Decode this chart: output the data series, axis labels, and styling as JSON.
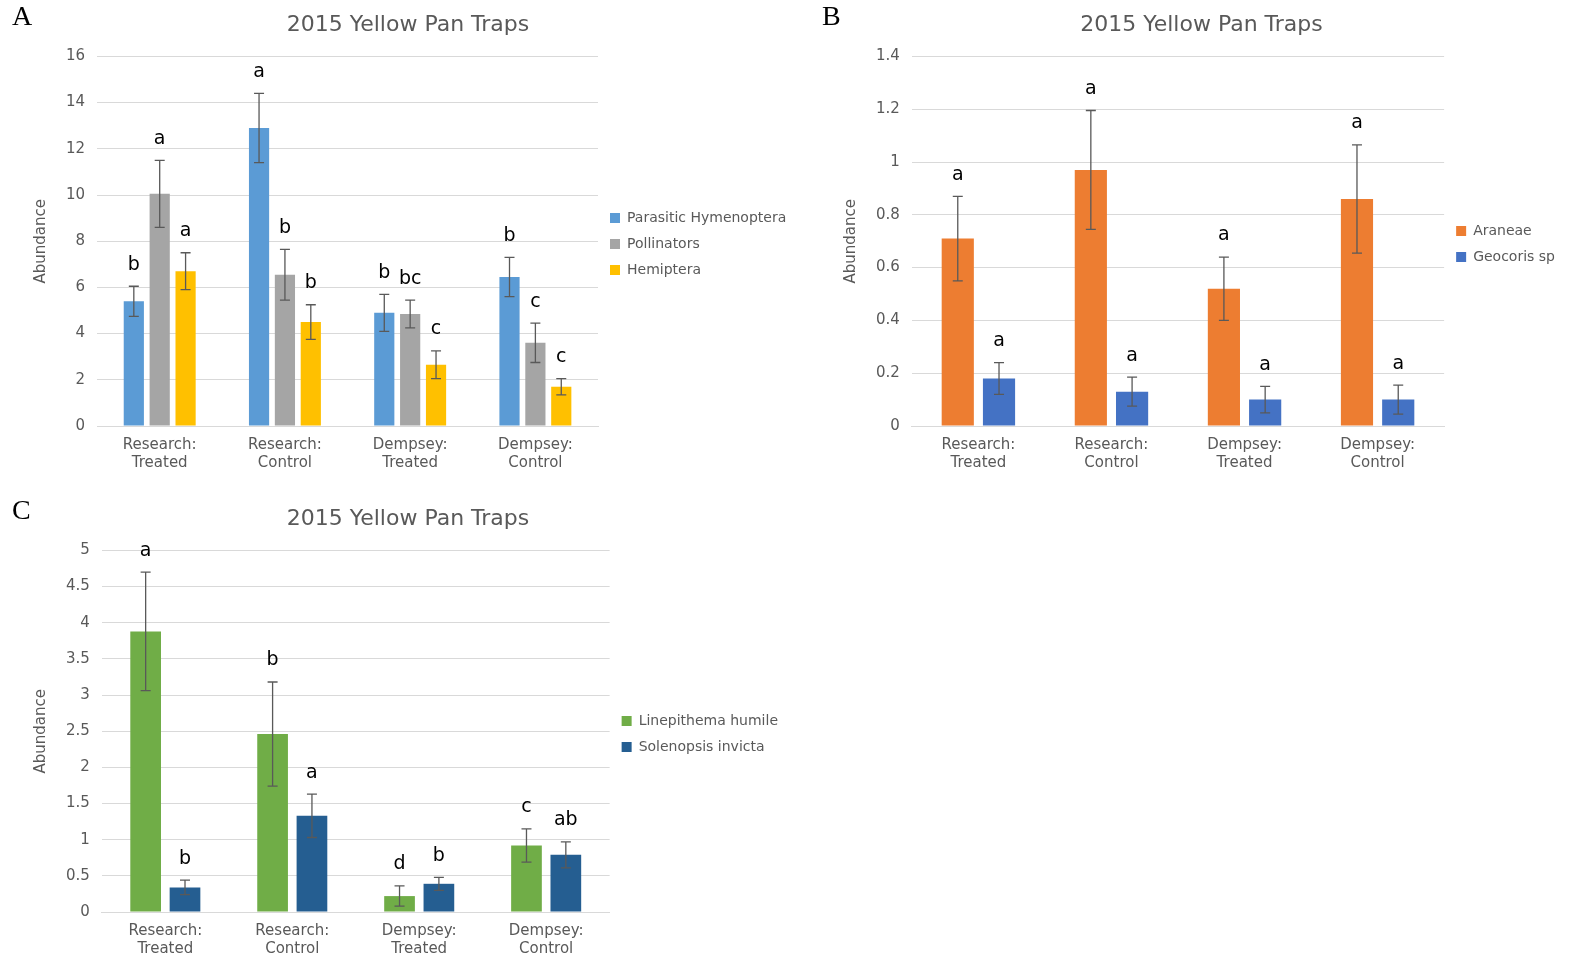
{
  "chart_data": [
    {
      "type": "bar",
      "title": "2015 Yellow Pan Traps",
      "ylabel": "Abundance",
      "categories": [
        "Research: Treated",
        "Research: Control",
        "Dempsey: Treated",
        "Dempsey: Control"
      ],
      "ylim": [
        0,
        16
      ],
      "yticks": [
        0,
        2,
        4,
        6,
        8,
        10,
        12,
        14,
        16
      ],
      "grid": "y",
      "legend": "right",
      "annotations": [
        "A",
        "b",
        "a",
        "a",
        "a",
        "b",
        "b",
        "b",
        "bc",
        "c",
        "b",
        "c",
        "c"
      ],
      "series": [
        {
          "name": "Parasitic Hymenoptera",
          "color": "#5b9bd5",
          "values": [
            5.4,
            12.9,
            4.9,
            6.45
          ],
          "errors": [
            0.65,
            1.5,
            0.8,
            0.85
          ]
        },
        {
          "name": "Pollinators",
          "color": "#a5a5a5",
          "values": [
            10.05,
            6.55,
            4.85,
            3.6
          ],
          "errors": [
            1.45,
            1.1,
            0.6,
            0.85
          ]
        },
        {
          "name": "Hemiptera",
          "color": "#ffc000",
          "values": [
            6.7,
            4.5,
            2.65,
            1.7
          ],
          "errors": [
            0.8,
            0.75,
            0.6,
            0.35
          ]
        }
      ]
    },
    {
      "type": "bar",
      "title": "2015 Yellow Pan Traps",
      "ylabel": "Abundance",
      "categories": [
        "Research: Treated",
        "Research: Control",
        "Dempsey: Treated",
        "Dempsey: Control"
      ],
      "ylim": [
        0,
        1.4
      ],
      "yticks": [
        0,
        0.2,
        0.4,
        0.6,
        0.8,
        1,
        1.2,
        1.4
      ],
      "grid": "y",
      "legend": "right",
      "annotations": [
        "B",
        "a",
        "a",
        "a",
        "a",
        "a",
        "a",
        "a",
        "a"
      ],
      "series": [
        {
          "name": "Araneae",
          "color": "#ed7d31",
          "values": [
            0.71,
            0.97,
            0.52,
            0.86
          ],
          "errors": [
            0.16,
            0.225,
            0.12,
            0.205
          ]
        },
        {
          "name": "Geocoris sp",
          "color": "#4472c4",
          "values": [
            0.18,
            0.13,
            0.1,
            0.1
          ],
          "errors": [
            0.06,
            0.055,
            0.05,
            0.055
          ]
        }
      ]
    },
    {
      "type": "bar",
      "title": "2015 Yellow Pan Traps",
      "ylabel": "Abundance",
      "categories": [
        "Research: Treated",
        "Research: Control",
        "Dempsey: Treated",
        "Dempsey: Control"
      ],
      "ylim": [
        0,
        5
      ],
      "yticks": [
        0,
        0.5,
        1,
        1.5,
        2,
        2.5,
        3,
        3.5,
        4,
        4.5,
        5
      ],
      "grid": "y",
      "legend": "right",
      "annotations": [
        "C",
        "a",
        "b",
        "b",
        "a",
        "d",
        "b",
        "c",
        "ab"
      ],
      "series": [
        {
          "name": "Linepithema humile",
          "color": "#70ad47",
          "values": [
            3.88,
            2.46,
            0.22,
            0.92
          ],
          "errors": [
            0.82,
            0.72,
            0.14,
            0.23
          ]
        },
        {
          "name": "Solenopsis invicta",
          "color": "#255e91",
          "values": [
            0.34,
            1.33,
            0.39,
            0.79
          ],
          "errors": [
            0.1,
            0.3,
            0.09,
            0.18
          ]
        }
      ]
    }
  ]
}
